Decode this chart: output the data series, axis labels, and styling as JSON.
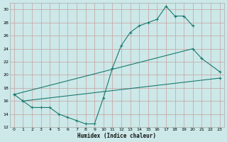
{
  "bg_color": "#cce8e8",
  "line_color": "#1a7a6e",
  "grid_color": "#b8d8d8",
  "xlabel": "Humidex (Indice chaleur)",
  "xlim": [
    -0.5,
    23.5
  ],
  "ylim": [
    12,
    31
  ],
  "xticks": [
    0,
    1,
    2,
    3,
    4,
    5,
    6,
    7,
    8,
    9,
    10,
    11,
    12,
    13,
    14,
    15,
    16,
    17,
    18,
    19,
    20,
    21,
    22,
    23
  ],
  "yticks": [
    12,
    14,
    16,
    18,
    20,
    22,
    24,
    26,
    28,
    30
  ],
  "line1_x": [
    0,
    1,
    2,
    3,
    4,
    5,
    6,
    7,
    8,
    9,
    10,
    11,
    12,
    13,
    14,
    15,
    16,
    17,
    18,
    19,
    20
  ],
  "line1_y": [
    17.0,
    16.0,
    15.0,
    15.0,
    15.0,
    14.0,
    13.5,
    13.0,
    12.5,
    12.5,
    16.5,
    21.0,
    24.5,
    26.5,
    27.5,
    28.0,
    28.5,
    30.5,
    29.0,
    29.0,
    27.5
  ],
  "line2_x": [
    0,
    20,
    21,
    23
  ],
  "line2_y": [
    17.0,
    24.0,
    22.5,
    20.5
  ],
  "line3_x": [
    1,
    23
  ],
  "line3_y": [
    16.0,
    19.5
  ]
}
